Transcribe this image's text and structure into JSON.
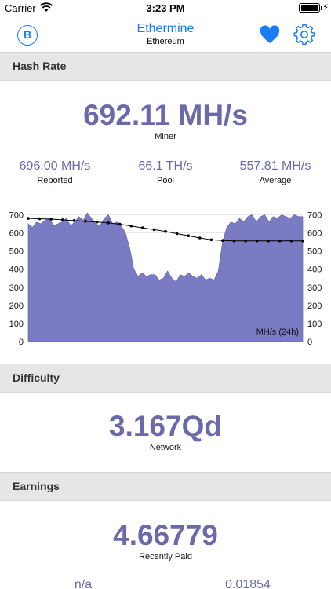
{
  "status_bar": {
    "carrier": "Carrier",
    "time": "3:23 PM"
  },
  "nav": {
    "coin_symbol": "B",
    "title": "Ethermine",
    "subtitle": "Ethereum"
  },
  "hash_rate": {
    "header": "Hash Rate",
    "miner_value": "692.11 MH/s",
    "miner_label": "Miner",
    "stats": [
      {
        "value": "696.00 MH/s",
        "label": "Reported"
      },
      {
        "value": "66.1 TH/s",
        "label": "Pool"
      },
      {
        "value": "557.81 MH/s",
        "label": "Average"
      }
    ]
  },
  "chart_data": {
    "type": "area",
    "unit_label": "MH/s (24h)",
    "ylim": [
      0,
      780
    ],
    "yticks": [
      0,
      100,
      200,
      300,
      400,
      500,
      600,
      700
    ],
    "y_tick_labels": [
      "0",
      "100",
      "200",
      "300",
      "400",
      "500",
      "600",
      "700"
    ],
    "area_color": "#7b7bc4",
    "series": [
      {
        "values": [
          650,
          630,
          660,
          650,
          670,
          680,
          640,
          650,
          660,
          680,
          640,
          660,
          690,
          670,
          710,
          680,
          650,
          640,
          680,
          700,
          650,
          660,
          640,
          600,
          520,
          400,
          360,
          380,
          360,
          370,
          370,
          340,
          350,
          390,
          350,
          330,
          370,
          360,
          380,
          360,
          350,
          370,
          340,
          350,
          340,
          390,
          550,
          630,
          660,
          650,
          680,
          660,
          690,
          700,
          660,
          690,
          700,
          660,
          690,
          680,
          700,
          690,
          680,
          700,
          690,
          690
        ]
      },
      {
        "name": "Average",
        "values": [
          680,
          678,
          676,
          672,
          668,
          664,
          660,
          655,
          648,
          638,
          628,
          618,
          608,
          596,
          584,
          572,
          562,
          558,
          556,
          556,
          556,
          556,
          556,
          556,
          556
        ]
      }
    ]
  },
  "difficulty": {
    "header": "Difficulty",
    "value": "3.167Qd",
    "label": "Network"
  },
  "earnings": {
    "header": "Earnings",
    "value": "4.66779",
    "label": "Recently Paid",
    "stats": [
      {
        "value": "n/a"
      },
      {
        "value": "0.01854"
      }
    ]
  },
  "colors": {
    "accent": "#1a7cf5",
    "value_purple": "#6a6aaa",
    "header_bg": "#e6e6e6"
  }
}
